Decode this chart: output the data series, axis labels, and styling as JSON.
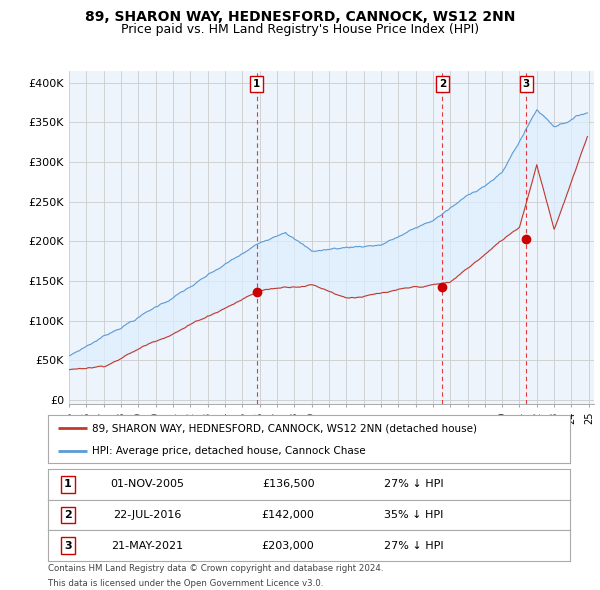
{
  "title": "89, SHARON WAY, HEDNESFORD, CANNOCK, WS12 2NN",
  "subtitle": "Price paid vs. HM Land Registry's House Price Index (HPI)",
  "yticks": [
    0,
    50000,
    100000,
    150000,
    200000,
    250000,
    300000,
    350000,
    400000
  ],
  "ytick_labels": [
    "£0",
    "£50K",
    "£100K",
    "£150K",
    "£200K",
    "£250K",
    "£300K",
    "£350K",
    "£400K"
  ],
  "ylim": [
    -5000,
    415000
  ],
  "xlim": [
    1995.0,
    2025.3
  ],
  "sale_years": [
    2005.833,
    2016.55,
    2021.38
  ],
  "sale_prices": [
    136500,
    142000,
    203000
  ],
  "sale_labels": [
    "1",
    "2",
    "3"
  ],
  "sale_hpi_diffs": [
    "27% ↓ HPI",
    "35% ↓ HPI",
    "27% ↓ HPI"
  ],
  "sale_date_labels": [
    "01-NOV-2005",
    "22-JUL-2016",
    "21-MAY-2021"
  ],
  "sale_price_labels": [
    "£136,500",
    "£142,000",
    "£203,000"
  ],
  "hpi_line_color": "#5b9bd5",
  "price_line_color": "#c0392b",
  "fill_color": "#ddeeff",
  "dashed_color": "#e31a1c",
  "legend_house": "89, SHARON WAY, HEDNESFORD, CANNOCK, WS12 2NN (detached house)",
  "legend_hpi": "HPI: Average price, detached house, Cannock Chase",
  "footnote1": "Contains HM Land Registry data © Crown copyright and database right 2024.",
  "footnote2": "This data is licensed under the Open Government Licence v3.0.",
  "bg_color": "#ffffff",
  "plot_bg_color": "#eef4fb",
  "grid_color": "#cccccc",
  "title_fontsize": 10,
  "subtitle_fontsize": 9,
  "axis_fontsize": 8
}
